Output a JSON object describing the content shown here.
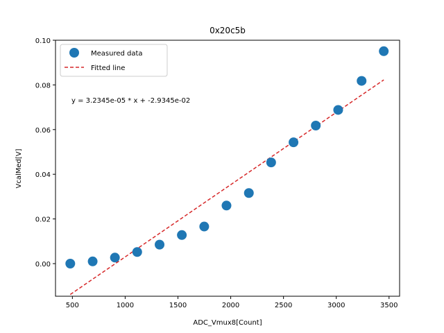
{
  "chart_data": {
    "type": "scatter",
    "title": "0x20c5b",
    "xlabel": "ADC_Vmux8[Count]",
    "ylabel": "VcalMed[V]",
    "xlim": [
      340,
      3600
    ],
    "ylim": [
      -0.0146,
      0.1
    ],
    "x_ticks": [
      500,
      1000,
      1500,
      2000,
      2500,
      3000,
      3500
    ],
    "x_tick_labels": [
      "500",
      "1000",
      "1500",
      "2000",
      "2500",
      "3000",
      "3500"
    ],
    "y_ticks": [
      0.0,
      0.02,
      0.04,
      0.06,
      0.08,
      0.1
    ],
    "y_tick_labels": [
      "0.00",
      "0.02",
      "0.04",
      "0.06",
      "0.08",
      "0.10"
    ],
    "grid": false,
    "legend_position": "top-left",
    "annotation": "y = 3.2345e-05 * x + -2.9345e-02",
    "fit": {
      "slope": 3.2345e-05,
      "intercept": -0.029345,
      "x_range": [
        480,
        3450
      ]
    },
    "series": [
      {
        "name": "Measured data",
        "kind": "points",
        "color": "#1f77b4",
        "x": [
          480,
          692,
          903,
          1114,
          1326,
          1537,
          1749,
          1960,
          2172,
          2383,
          2595,
          2806,
          3018,
          3240,
          3450
        ],
        "y": [
          0.0,
          0.001,
          0.0027,
          0.0052,
          0.0085,
          0.0128,
          0.0166,
          0.026,
          0.0316,
          0.0453,
          0.0543,
          0.0618,
          0.0688,
          0.0818,
          0.0951
        ]
      },
      {
        "name": "Fitted line",
        "kind": "dashed-line",
        "color": "#d62728"
      }
    ]
  }
}
